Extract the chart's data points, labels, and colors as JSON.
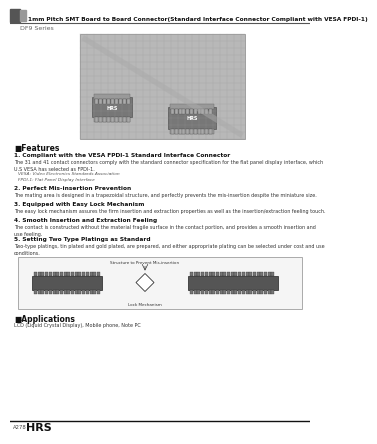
{
  "bg_color": "#ffffff",
  "header_text": "1mm Pitch SMT Board to Board Connector(Standard Interface Connector Compliant with VESA FPDI-1)",
  "series_text": "DF9 Series",
  "features_title": "■Features",
  "feature1_title": "1. Compliant with the VESA FPDI-1 Standard Interface Connector",
  "feature1_body": "The 31 and 41 contact connectors comply with the standard connector specification for the flat panel display interface, which\nU.S VESA has selected as FPDI-1.",
  "feature1_vesa": "VESA: Video Electronics Standards Association",
  "feature1_fpdi": "FPDI-1: Flat Panel Display Interface",
  "feature2_title": "2. Perfect Mis-insertion Prevention",
  "feature2_body": "The mating area is designed in a trapezoidal structure, and perfectly prevents the mis-insertion despite the miniature size.",
  "feature3_title": "3. Equipped with Easy Lock Mechanism",
  "feature3_body": "The easy lock mechanism assures the firm insertion and extraction properties as well as the insertion/extraction feeling touch.",
  "feature4_title": "4. Smooth Insertion and Extraction Feeling",
  "feature4_body": "The contact is constructed without the material fragile surface in the contact portion, and provides a smooth insertion and\nuse feeling.",
  "feature5_title": "5. Setting Two Type Platings as Standard",
  "feature5_body": "Two-type platings, tin plated and gold plated, are prepared, and either appropriate plating can be selected under cost and use\nconditions.",
  "applications_title": "■Applications",
  "applications_body": "LCD (Liquid Crystal Display), Mobile phone, Note PC",
  "footer_left": "A278",
  "footer_brand": "HRS",
  "structure_label": "Structure to Prevent Mis-insertion",
  "lock_label": "Lock Mechanism"
}
